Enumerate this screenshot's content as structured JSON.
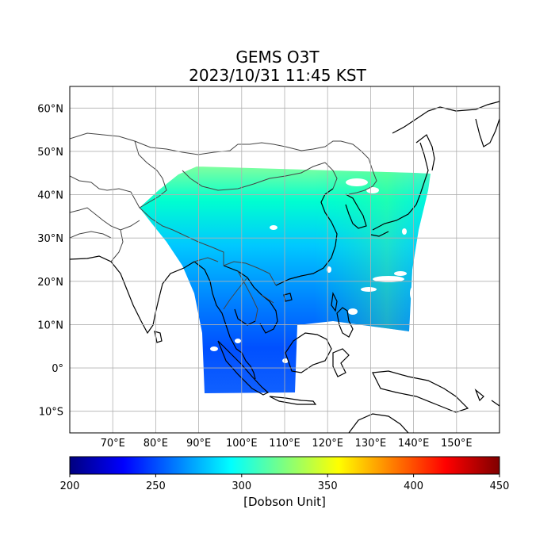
{
  "title": "GEMS O3T",
  "subtitle": "2023/10/31 11:45 KST",
  "map": {
    "lon_range": [
      60,
      160
    ],
    "lat_range": [
      -15,
      65
    ],
    "lon_ticks": [
      70,
      80,
      90,
      100,
      110,
      120,
      130,
      140,
      150
    ],
    "lon_labels": [
      "70°E",
      "80°E",
      "90°E",
      "100°E",
      "110°E",
      "120°E",
      "130°E",
      "140°E",
      "150°E"
    ],
    "lat_ticks": [
      60,
      50,
      40,
      30,
      20,
      10,
      0,
      -10
    ],
    "lat_labels": [
      "60°N",
      "50°N",
      "40°N",
      "30°N",
      "20°N",
      "10°N",
      "0°",
      "10°S"
    ],
    "grid": true,
    "ozone_coverage": "GEMS field of regard (approx. 5°S–47°N, 75°E–145°E)",
    "colormap": "jet"
  },
  "colorbar": {
    "min": 200,
    "max": 450,
    "ticks": [
      200,
      250,
      300,
      350,
      400,
      450
    ],
    "tick_labels": [
      "200",
      "250",
      "300",
      "350",
      "400",
      "450"
    ],
    "label": "[Dobson Unit]",
    "colors": [
      "#00007f",
      "#0000ff",
      "#007fff",
      "#00ffff",
      "#7fff7f",
      "#ffff00",
      "#ff7f00",
      "#ff0000",
      "#7f0000"
    ]
  }
}
